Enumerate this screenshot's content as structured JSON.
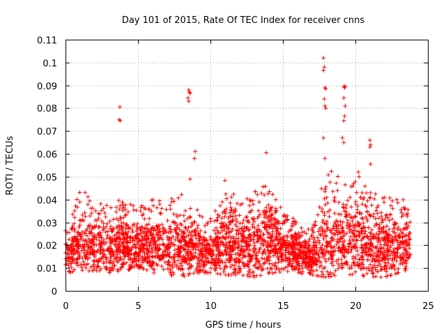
{
  "chart_data": {
    "type": "scatter",
    "title": "Day 101 of 2015, Rate Of TEC Index for receiver cnns",
    "xlabel": "GPS time / hours",
    "ylabel": "ROTI / TECUs",
    "xlim": [
      0,
      25
    ],
    "ylim": [
      0,
      0.11
    ],
    "xticks": [
      0,
      5,
      10,
      15,
      20,
      25
    ],
    "xtick_labels": [
      "0",
      "5",
      "10",
      "15",
      "20",
      "25"
    ],
    "yticks": [
      0,
      0.01,
      0.02,
      0.03,
      0.04,
      0.05,
      0.06,
      0.07,
      0.08,
      0.09,
      0.1,
      0.11
    ],
    "ytick_labels": [
      "0",
      "0.01",
      "0.02",
      "0.03",
      "0.04",
      "0.05",
      "0.06",
      "0.07",
      "0.08",
      "0.09",
      "0.1",
      "0.11"
    ],
    "grid": true,
    "marker": "+",
    "series": [
      {
        "name": "ROTI",
        "color": "#ff0000",
        "envelope": {
          "x": [
            0,
            1,
            2,
            3,
            4,
            5,
            6,
            7,
            8,
            9,
            10,
            11,
            12,
            13,
            14,
            15,
            16,
            17,
            18,
            19,
            20,
            21,
            22,
            23,
            23.8
          ],
          "max": [
            0.03,
            0.046,
            0.038,
            0.039,
            0.04,
            0.038,
            0.04,
            0.04,
            0.044,
            0.036,
            0.032,
            0.05,
            0.038,
            0.043,
            0.05,
            0.034,
            0.032,
            0.027,
            0.055,
            0.05,
            0.049,
            0.045,
            0.042,
            0.043,
            0.035
          ],
          "min": [
            0.008,
            0.008,
            0.009,
            0.008,
            0.009,
            0.009,
            0.008,
            0.007,
            0.006,
            0.008,
            0.008,
            0.007,
            0.007,
            0.006,
            0.007,
            0.008,
            0.008,
            0.007,
            0.006,
            0.007,
            0.007,
            0.006,
            0.006,
            0.008,
            0.008
          ]
        },
        "outliers": [
          {
            "x": 3.75,
            "y": 0.0805
          },
          {
            "x": 3.7,
            "y": 0.075
          },
          {
            "x": 3.78,
            "y": 0.0745
          },
          {
            "x": 8.5,
            "y": 0.088
          },
          {
            "x": 8.55,
            "y": 0.087
          },
          {
            "x": 8.6,
            "y": 0.0865
          },
          {
            "x": 8.45,
            "y": 0.0845
          },
          {
            "x": 8.5,
            "y": 0.083
          },
          {
            "x": 8.95,
            "y": 0.061
          },
          {
            "x": 8.9,
            "y": 0.058
          },
          {
            "x": 8.6,
            "y": 0.049
          },
          {
            "x": 13.85,
            "y": 0.0605
          },
          {
            "x": 17.8,
            "y": 0.102
          },
          {
            "x": 17.85,
            "y": 0.098
          },
          {
            "x": 17.8,
            "y": 0.0965
          },
          {
            "x": 17.9,
            "y": 0.089
          },
          {
            "x": 17.95,
            "y": 0.0885
          },
          {
            "x": 17.85,
            "y": 0.084
          },
          {
            "x": 17.9,
            "y": 0.081
          },
          {
            "x": 17.95,
            "y": 0.08
          },
          {
            "x": 17.8,
            "y": 0.067
          },
          {
            "x": 17.9,
            "y": 0.058
          },
          {
            "x": 19.2,
            "y": 0.0895
          },
          {
            "x": 19.3,
            "y": 0.0895
          },
          {
            "x": 19.25,
            "y": 0.089
          },
          {
            "x": 19.2,
            "y": 0.0845
          },
          {
            "x": 19.3,
            "y": 0.081
          },
          {
            "x": 19.25,
            "y": 0.0765
          },
          {
            "x": 19.2,
            "y": 0.0745
          },
          {
            "x": 19.1,
            "y": 0.067
          },
          {
            "x": 19.2,
            "y": 0.065
          },
          {
            "x": 21.0,
            "y": 0.066
          },
          {
            "x": 21.05,
            "y": 0.064
          },
          {
            "x": 21.0,
            "y": 0.063
          },
          {
            "x": 21.05,
            "y": 0.0555
          },
          {
            "x": 20.2,
            "y": 0.052
          },
          {
            "x": 20.25,
            "y": 0.05
          }
        ]
      }
    ]
  }
}
